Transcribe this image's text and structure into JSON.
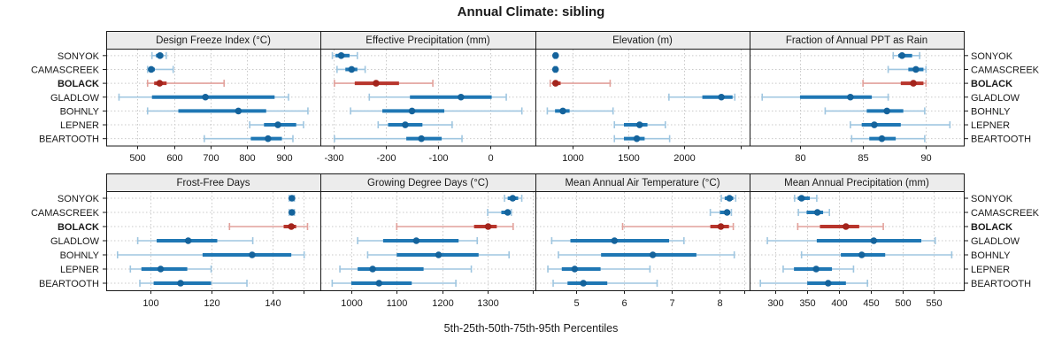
{
  "title": "Annual Climate: sibling",
  "caption": "5th-25th-50th-75th-95th Percentiles",
  "sites": [
    "SONYOK",
    "CAMASCREEK",
    "BOLACK",
    "GLADLOW",
    "BOHNLY",
    "LEPNER",
    "BEARTOOTH"
  ],
  "highlight_site": "BOLACK",
  "colors": {
    "background": "#ffffff",
    "border": "#1a1a1a",
    "strip_bg": "#ececec",
    "grid": "#c9c9c9",
    "text": "#1a1a1a",
    "series_main": "#1f77b4",
    "series_light": "#9fc6e0",
    "series_dot": "#14639c",
    "highlight_main": "#b8352c",
    "highlight_light": "#e2a19b",
    "highlight_dot": "#a3241c"
  },
  "chart_data": {
    "type": "dot-interval-trellis",
    "title": "Annual Climate: sibling",
    "caption": "5th-25th-50th-75th-95th Percentiles",
    "categories": [
      "SONYOK",
      "CAMASCREEK",
      "BOLACK",
      "GLADLOW",
      "BOHNLY",
      "LEPNER",
      "BEARTOOTH"
    ],
    "percentiles": [
      5,
      25,
      50,
      75,
      95
    ],
    "legend_position": "none",
    "grid": true,
    "panels": [
      {
        "title": "Design Freeze Index (°C)",
        "row": 0,
        "col": 0,
        "xlim": [
          415,
          1000
        ],
        "ticks": [
          [
            500,
            "500"
          ],
          [
            600,
            "600"
          ],
          [
            700,
            "700"
          ],
          [
            800,
            "800"
          ],
          [
            900,
            "900"
          ]
        ],
        "series": [
          {
            "site": "SONYOK",
            "p": [
              540,
              551,
              562,
              571,
              579
            ]
          },
          {
            "site": "CAMASCREEK",
            "p": [
              528,
              531,
              538,
              548,
              598
            ]
          },
          {
            "site": "BOLACK",
            "p": [
              528,
              546,
              561,
              580,
              737
            ]
          },
          {
            "site": "GLADLOW",
            "p": [
              450,
              540,
              686,
              875,
              913
            ]
          },
          {
            "site": "BOHNLY",
            "p": [
              528,
              612,
              776,
              852,
              966
            ]
          },
          {
            "site": "LEPNER",
            "p": [
              807,
              846,
              884,
              934,
              954
            ]
          },
          {
            "site": "BEARTOOTH",
            "p": [
              683,
              810,
              857,
              895,
              925
            ]
          }
        ]
      },
      {
        "title": "Effective Precipitation (mm)",
        "row": 0,
        "col": 1,
        "xlim": [
          -326,
          87
        ],
        "ticks": [
          [
            -300,
            "-300"
          ],
          [
            -200,
            "-200"
          ],
          [
            -100,
            "-100"
          ],
          [
            0,
            "0"
          ]
        ],
        "series": [
          {
            "site": "SONYOK",
            "p": [
              -303,
              -297,
              -286,
              -270,
              -255
            ]
          },
          {
            "site": "CAMASCREEK",
            "p": [
              -294,
              -278,
              -266,
              -255,
              -240
            ]
          },
          {
            "site": "BOLACK",
            "p": [
              -299,
              -260,
              -219,
              -175,
              -110
            ]
          },
          {
            "site": "GLADLOW",
            "p": [
              -232,
              -154,
              -56,
              3,
              31
            ]
          },
          {
            "site": "BOHNLY",
            "p": [
              -268,
              -207,
              -150,
              -88,
              61
            ]
          },
          {
            "site": "LEPNER",
            "p": [
              -215,
              -196,
              -163,
              -130,
              -73
            ]
          },
          {
            "site": "BEARTOOTH",
            "p": [
              -299,
              -161,
              -132,
              -93,
              -54
            ]
          }
        ]
      },
      {
        "title": "Elevation (m)",
        "row": 0,
        "col": 2,
        "xlim": [
          670,
          2582
        ],
        "ticks": [
          [
            1000,
            "1000"
          ],
          [
            1500,
            "1500"
          ],
          [
            2000,
            "2000"
          ],
          [
            2500,
            ""
          ]
        ],
        "series": [
          {
            "site": "SONYOK",
            "p": [
              838,
              845,
              850,
              855,
              862
            ]
          },
          {
            "site": "CAMASCREEK",
            "p": [
              838,
              844,
              849,
              854,
              860
            ]
          },
          {
            "site": "BOLACK",
            "p": [
              802,
              825,
              850,
              895,
              1337
            ]
          },
          {
            "site": "GLADLOW",
            "p": [
              1862,
              2160,
              2330,
              2430,
              2450
            ]
          },
          {
            "site": "BOHNLY",
            "p": [
              776,
              845,
              915,
              975,
              1363
            ]
          },
          {
            "site": "LEPNER",
            "p": [
              1375,
              1460,
              1600,
              1670,
              1830
            ]
          },
          {
            "site": "BEARTOOTH",
            "p": [
              1375,
              1460,
              1575,
              1645,
              1868
            ]
          }
        ]
      },
      {
        "title": "Fraction of Annual PPT as Rain",
        "row": 0,
        "col": 3,
        "xlim": [
          76,
          93
        ],
        "ticks": [
          [
            80,
            "80"
          ],
          [
            85,
            "85"
          ],
          [
            90,
            "90"
          ]
        ],
        "series": [
          {
            "site": "SONYOK",
            "p": [
              87.4,
              87.8,
              88.1,
              88.9,
              89.5
            ]
          },
          {
            "site": "CAMASCREEK",
            "p": [
              87.0,
              88.6,
              89.2,
              89.8,
              90.0
            ]
          },
          {
            "site": "BOLACK",
            "p": [
              85.0,
              88.0,
              89.0,
              89.8,
              90.0
            ]
          },
          {
            "site": "GLADLOW",
            "p": [
              77.0,
              80.0,
              84.0,
              85.7,
              87.0
            ]
          },
          {
            "site": "BOHNLY",
            "p": [
              82.0,
              85.3,
              86.9,
              88.2,
              89.9
            ]
          },
          {
            "site": "LEPNER",
            "p": [
              84.0,
              84.9,
              85.9,
              88.0,
              91.9
            ]
          },
          {
            "site": "BEARTOOTH",
            "p": [
              84.1,
              85.5,
              86.5,
              87.6,
              89.9
            ]
          }
        ]
      },
      {
        "title": "Frost-Free Days",
        "row": 1,
        "col": 0,
        "xlim": [
          85.5,
          155.5
        ],
        "ticks": [
          [
            100,
            "100"
          ],
          [
            120,
            "120"
          ],
          [
            140,
            "140"
          ],
          [
            150,
            ""
          ]
        ],
        "series": [
          {
            "site": "SONYOK",
            "p": [
              145.3,
              145.8,
              146.2,
              146.6,
              147.0
            ]
          },
          {
            "site": "CAMASCREEK",
            "p": [
              145.3,
              145.8,
              146.2,
              146.6,
              147.0
            ]
          },
          {
            "site": "BOLACK",
            "p": [
              125.8,
              143.5,
              146.0,
              147.6,
              151.3
            ]
          },
          {
            "site": "GLADLOW",
            "p": [
              95.8,
              102.0,
              112.3,
              121.8,
              133.4
            ]
          },
          {
            "site": "BOHNLY",
            "p": [
              89.2,
              117.0,
              133.2,
              146.0,
              150.2
            ]
          },
          {
            "site": "LEPNER",
            "p": [
              93.4,
              97.0,
              103.3,
              112.0,
              119.8
            ]
          },
          {
            "site": "BEARTOOTH",
            "p": [
              96.5,
              101.0,
              109.8,
              119.8,
              131.5
            ]
          }
        ]
      },
      {
        "title": "Growing Degree Days (°C)",
        "row": 1,
        "col": 1,
        "xlim": [
          932,
          1405
        ],
        "ticks": [
          [
            1000,
            "1000"
          ],
          [
            1100,
            "1100"
          ],
          [
            1200,
            "1200"
          ],
          [
            1300,
            "1300"
          ],
          [
            1400,
            ""
          ]
        ],
        "series": [
          {
            "site": "SONYOK",
            "p": [
              1337,
              1344,
              1355,
              1367,
              1375
            ]
          },
          {
            "site": "CAMASCREEK",
            "p": [
              1300,
              1330,
              1344,
              1349,
              1352
            ]
          },
          {
            "site": "BOLACK",
            "p": [
              1100,
              1270,
              1301,
              1320,
              1356
            ]
          },
          {
            "site": "GLADLOW",
            "p": [
              1014,
              1070,
              1143,
              1236,
              1277
            ]
          },
          {
            "site": "BOHNLY",
            "p": [
              1036,
              1100,
              1192,
              1280,
              1347
            ]
          },
          {
            "site": "LEPNER",
            "p": [
              975,
              1014,
              1047,
              1159,
              1264
            ]
          },
          {
            "site": "BEARTOOTH",
            "p": [
              958,
              1000,
              1061,
              1133,
              1230
            ]
          }
        ]
      },
      {
        "title": "Mean Annual Air Temperature (°C)",
        "row": 1,
        "col": 2,
        "xlim": [
          4.15,
          8.62
        ],
        "ticks": [
          [
            5,
            "5"
          ],
          [
            6,
            "6"
          ],
          [
            7,
            "7"
          ],
          [
            8,
            "8"
          ],
          [
            8.5,
            ""
          ]
        ],
        "series": [
          {
            "site": "SONYOK",
            "p": [
              8.03,
              8.1,
              8.2,
              8.28,
              8.33
            ]
          },
          {
            "site": "CAMASCREEK",
            "p": [
              7.8,
              8.0,
              8.15,
              8.21,
              8.24
            ]
          },
          {
            "site": "BOLACK",
            "p": [
              5.97,
              7.8,
              8.02,
              8.19,
              8.28
            ]
          },
          {
            "site": "GLADLOW",
            "p": [
              4.49,
              4.88,
              5.8,
              6.94,
              7.25
            ]
          },
          {
            "site": "BOHNLY",
            "p": [
              4.63,
              5.52,
              6.6,
              7.51,
              8.3
            ]
          },
          {
            "site": "LEPNER",
            "p": [
              4.41,
              4.7,
              4.97,
              5.51,
              6.54
            ]
          },
          {
            "site": "BEARTOOTH",
            "p": [
              4.52,
              4.82,
              5.15,
              5.65,
              6.69
            ]
          }
        ]
      },
      {
        "title": "Mean Annual Precipitation (mm)",
        "row": 1,
        "col": 3,
        "xlim": [
          259,
          597
        ],
        "ticks": [
          [
            300,
            "300"
          ],
          [
            350,
            "350"
          ],
          [
            400,
            "400"
          ],
          [
            450,
            "450"
          ],
          [
            500,
            "500"
          ],
          [
            550,
            "550"
          ]
        ],
        "series": [
          {
            "site": "SONYOK",
            "p": [
              330,
              335,
              341,
              354,
              365
            ]
          },
          {
            "site": "CAMASCREEK",
            "p": [
              336,
              349,
              366,
              375,
              385
            ]
          },
          {
            "site": "BOLACK",
            "p": [
              335,
              370,
              411,
              432,
              470
            ]
          },
          {
            "site": "GLADLOW",
            "p": [
              287,
              365,
              455,
              530,
              552
            ]
          },
          {
            "site": "BOHNLY",
            "p": [
              341,
              403,
              436,
              473,
              578
            ]
          },
          {
            "site": "LEPNER",
            "p": [
              312,
              329,
              364,
              389,
              423
            ]
          },
          {
            "site": "BEARTOOTH",
            "p": [
              276,
              350,
              383,
              411,
              445
            ]
          }
        ]
      }
    ]
  }
}
